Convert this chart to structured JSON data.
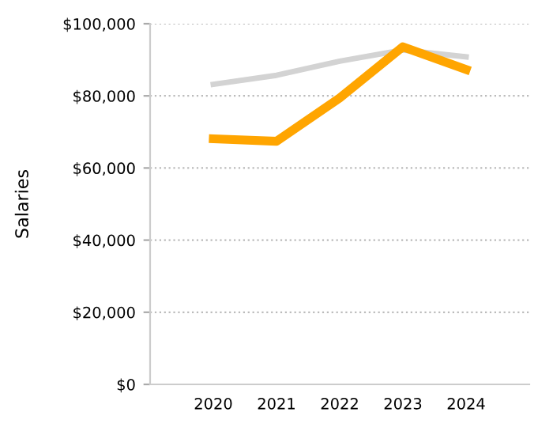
{
  "chart_data": {
    "type": "line",
    "ylabel": "Salaries",
    "categories": [
      "2020",
      "2021",
      "2022",
      "2023",
      "2024"
    ],
    "series": [
      {
        "color": "#d3d3d3",
        "values": [
          83200,
          85700,
          89600,
          92700,
          90800
        ]
      },
      {
        "color": "#ffa500",
        "values": [
          68100,
          67400,
          79400,
          93600,
          87300
        ]
      }
    ],
    "ylim": [
      0,
      100000
    ],
    "yticks": [
      {
        "value": 0,
        "label": "$0"
      },
      {
        "value": 20000,
        "label": "$20,000"
      },
      {
        "value": 40000,
        "label": "$40,000"
      },
      {
        "value": 60000,
        "label": "$60,000"
      },
      {
        "value": 80000,
        "label": "$80,000"
      },
      {
        "value": 100000,
        "label": "$100,000"
      }
    ],
    "grid": "y",
    "line_style": "solid",
    "marker": "none"
  }
}
